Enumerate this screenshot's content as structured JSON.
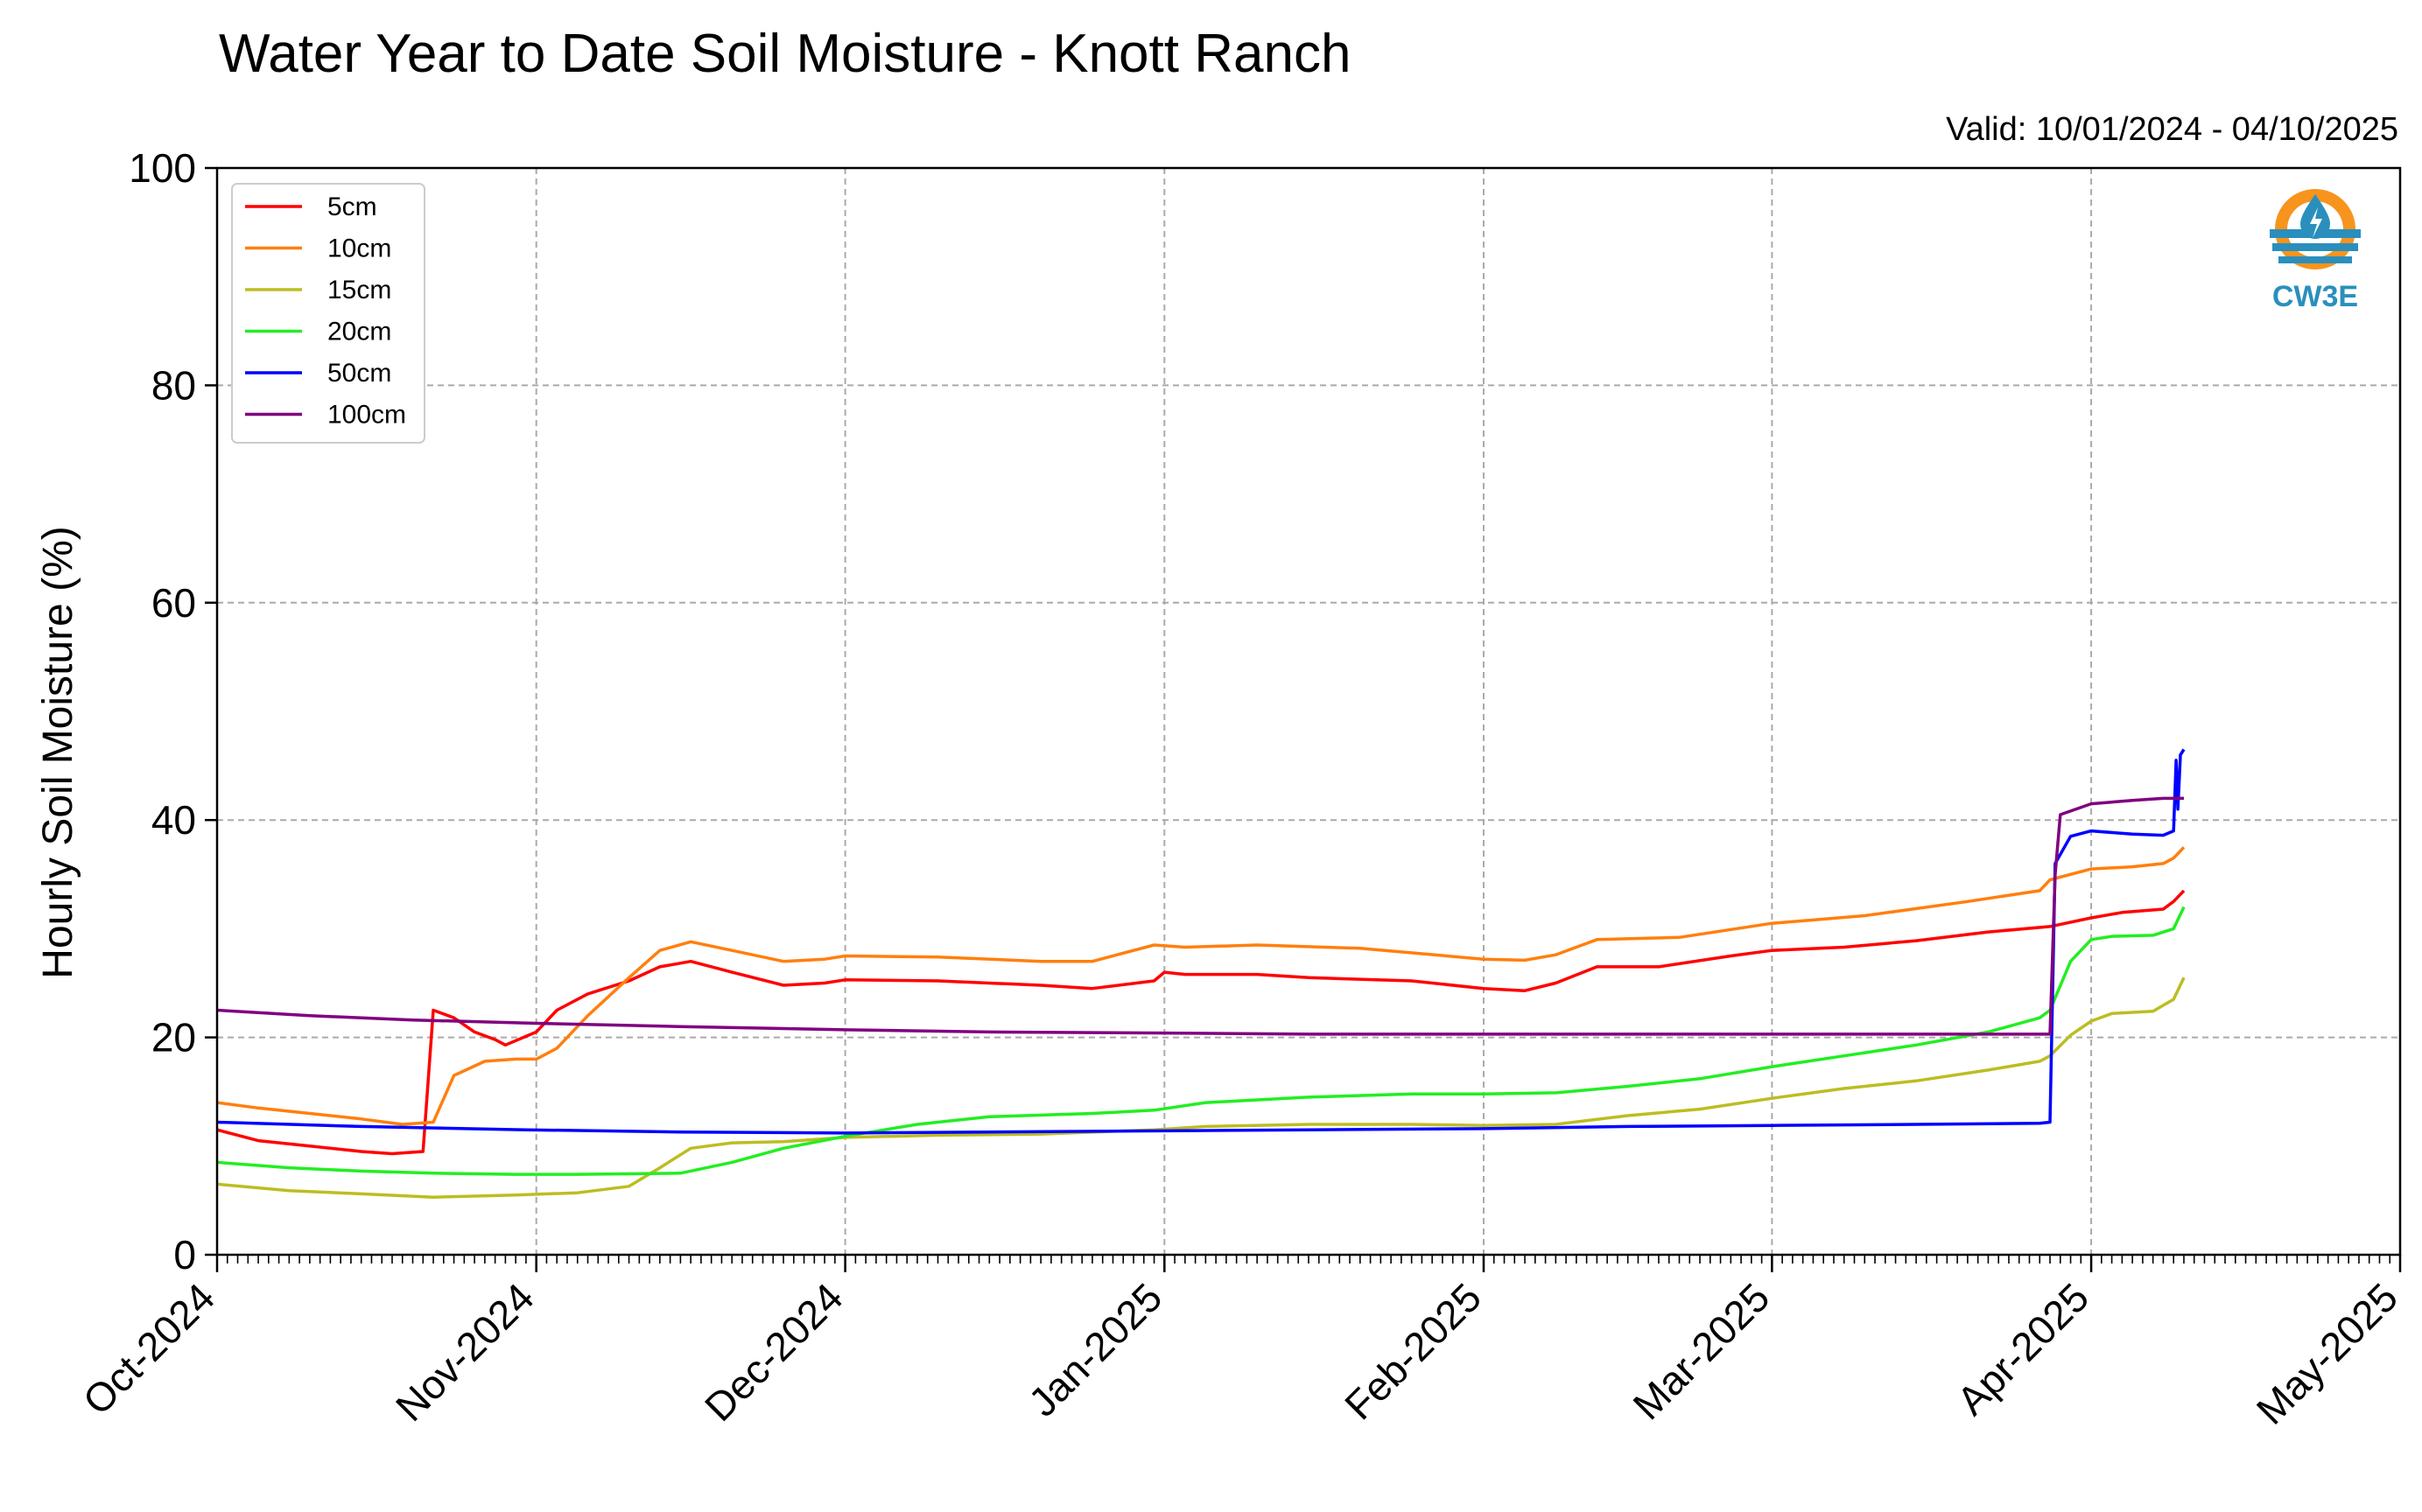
{
  "chart_data": {
    "type": "line",
    "title": "Water Year to Date Soil Moisture - Knott Ranch",
    "subtitle": "Valid: 10/01/2024 - 04/10/2025",
    "xlabel": "",
    "ylabel": "Hourly Soil Moisture (%)",
    "xlim": [
      "2024-10-01",
      "2025-05-01"
    ],
    "ylim": [
      0,
      100
    ],
    "yticks": [
      0,
      20,
      40,
      60,
      80,
      100
    ],
    "xticks": [
      {
        "date": "2024-10-01",
        "label": "Oct-2024"
      },
      {
        "date": "2024-11-01",
        "label": "Nov-2024"
      },
      {
        "date": "2024-12-01",
        "label": "Dec-2024"
      },
      {
        "date": "2025-01-01",
        "label": "Jan-2025"
      },
      {
        "date": "2025-02-01",
        "label": "Feb-2025"
      },
      {
        "date": "2025-03-01",
        "label": "Mar-2025"
      },
      {
        "date": "2025-04-01",
        "label": "Apr-2025"
      },
      {
        "date": "2025-05-01",
        "label": "May-2025"
      }
    ],
    "grid": true,
    "legend_position": "top-left",
    "logo": {
      "text": "CW3E",
      "colors": {
        "ring": "#f7941d",
        "waves": "#2a8fbd",
        "text": "#2a8fbd"
      }
    },
    "series": [
      {
        "name": "5cm",
        "color": "#ff0000",
        "points": [
          [
            "2024-10-01",
            11.5
          ],
          [
            "2024-10-05",
            10.5
          ],
          [
            "2024-10-10",
            10.0
          ],
          [
            "2024-10-15",
            9.5
          ],
          [
            "2024-10-18",
            9.3
          ],
          [
            "2024-10-21",
            9.5
          ],
          [
            "2024-10-22",
            22.5
          ],
          [
            "2024-10-24",
            21.8
          ],
          [
            "2024-10-26",
            20.5
          ],
          [
            "2024-10-28",
            19.8
          ],
          [
            "2024-10-29",
            19.3
          ],
          [
            "2024-11-01",
            20.5
          ],
          [
            "2024-11-03",
            22.5
          ],
          [
            "2024-11-06",
            24.0
          ],
          [
            "2024-11-10",
            25.2
          ],
          [
            "2024-11-13",
            26.5
          ],
          [
            "2024-11-16",
            27.0
          ],
          [
            "2024-11-20",
            26.0
          ],
          [
            "2024-11-25",
            24.8
          ],
          [
            "2024-11-29",
            25.0
          ],
          [
            "2024-12-01",
            25.3
          ],
          [
            "2024-12-10",
            25.2
          ],
          [
            "2024-12-20",
            24.8
          ],
          [
            "2024-12-25",
            24.5
          ],
          [
            "2024-12-31",
            25.2
          ],
          [
            "2025-01-01",
            26.0
          ],
          [
            "2025-01-03",
            25.8
          ],
          [
            "2025-01-10",
            25.8
          ],
          [
            "2025-01-15",
            25.5
          ],
          [
            "2025-01-25",
            25.2
          ],
          [
            "2025-02-01",
            24.5
          ],
          [
            "2025-02-05",
            24.3
          ],
          [
            "2025-02-08",
            25.0
          ],
          [
            "2025-02-12",
            26.5
          ],
          [
            "2025-02-18",
            26.5
          ],
          [
            "2025-02-25",
            27.5
          ],
          [
            "2025-03-01",
            28.0
          ],
          [
            "2025-03-08",
            28.3
          ],
          [
            "2025-03-15",
            28.9
          ],
          [
            "2025-03-22",
            29.7
          ],
          [
            "2025-03-28",
            30.2
          ],
          [
            "2025-04-01",
            31.0
          ],
          [
            "2025-04-04",
            31.5
          ],
          [
            "2025-04-08",
            31.8
          ],
          [
            "2025-04-09",
            32.5
          ],
          [
            "2025-04-10",
            33.5
          ]
        ]
      },
      {
        "name": "10cm",
        "color": "#ff7f0e",
        "points": [
          [
            "2024-10-01",
            14.0
          ],
          [
            "2024-10-05",
            13.5
          ],
          [
            "2024-10-10",
            13.0
          ],
          [
            "2024-10-15",
            12.5
          ],
          [
            "2024-10-19",
            12.0
          ],
          [
            "2024-10-22",
            12.2
          ],
          [
            "2024-10-24",
            16.5
          ],
          [
            "2024-10-27",
            17.8
          ],
          [
            "2024-10-30",
            18.0
          ],
          [
            "2024-11-01",
            18.0
          ],
          [
            "2024-11-03",
            19.0
          ],
          [
            "2024-11-06",
            22.0
          ],
          [
            "2024-11-10",
            25.5
          ],
          [
            "2024-11-13",
            28.0
          ],
          [
            "2024-11-16",
            28.8
          ],
          [
            "2024-11-20",
            28.0
          ],
          [
            "2024-11-25",
            27.0
          ],
          [
            "2024-11-29",
            27.2
          ],
          [
            "2024-12-01",
            27.5
          ],
          [
            "2024-12-10",
            27.4
          ],
          [
            "2024-12-20",
            27.0
          ],
          [
            "2024-12-25",
            27.0
          ],
          [
            "2024-12-31",
            28.5
          ],
          [
            "2025-01-03",
            28.3
          ],
          [
            "2025-01-10",
            28.5
          ],
          [
            "2025-01-20",
            28.2
          ],
          [
            "2025-02-01",
            27.2
          ],
          [
            "2025-02-05",
            27.1
          ],
          [
            "2025-02-08",
            27.6
          ],
          [
            "2025-02-12",
            29.0
          ],
          [
            "2025-02-20",
            29.2
          ],
          [
            "2025-03-01",
            30.5
          ],
          [
            "2025-03-10",
            31.2
          ],
          [
            "2025-03-20",
            32.5
          ],
          [
            "2025-03-27",
            33.5
          ],
          [
            "2025-03-28",
            34.5
          ],
          [
            "2025-04-01",
            35.5
          ],
          [
            "2025-04-05",
            35.7
          ],
          [
            "2025-04-08",
            36.0
          ],
          [
            "2025-04-09",
            36.5
          ],
          [
            "2025-04-10",
            37.5
          ]
        ]
      },
      {
        "name": "15cm",
        "color": "#bcbd22",
        "points": [
          [
            "2024-10-01",
            6.5
          ],
          [
            "2024-10-08",
            5.9
          ],
          [
            "2024-10-15",
            5.6
          ],
          [
            "2024-10-22",
            5.3
          ],
          [
            "2024-10-30",
            5.5
          ],
          [
            "2024-11-05",
            5.7
          ],
          [
            "2024-11-10",
            6.3
          ],
          [
            "2024-11-13",
            8.0
          ],
          [
            "2024-11-16",
            9.8
          ],
          [
            "2024-11-20",
            10.3
          ],
          [
            "2024-11-25",
            10.4
          ],
          [
            "2024-12-01",
            10.8
          ],
          [
            "2024-12-10",
            11.0
          ],
          [
            "2024-12-20",
            11.1
          ],
          [
            "2024-12-31",
            11.5
          ],
          [
            "2025-01-05",
            11.8
          ],
          [
            "2025-01-15",
            12.0
          ],
          [
            "2025-01-25",
            12.0
          ],
          [
            "2025-02-01",
            11.9
          ],
          [
            "2025-02-08",
            12.0
          ],
          [
            "2025-02-15",
            12.8
          ],
          [
            "2025-02-22",
            13.4
          ],
          [
            "2025-03-01",
            14.4
          ],
          [
            "2025-03-08",
            15.3
          ],
          [
            "2025-03-15",
            16.0
          ],
          [
            "2025-03-22",
            17.0
          ],
          [
            "2025-03-27",
            17.8
          ],
          [
            "2025-03-28",
            18.3
          ],
          [
            "2025-03-30",
            20.2
          ],
          [
            "2025-04-01",
            21.5
          ],
          [
            "2025-04-03",
            22.2
          ],
          [
            "2025-04-07",
            22.4
          ],
          [
            "2025-04-09",
            23.5
          ],
          [
            "2025-04-10",
            25.5
          ]
        ]
      },
      {
        "name": "20cm",
        "color": "#22ee22",
        "points": [
          [
            "2024-10-01",
            8.5
          ],
          [
            "2024-10-08",
            8.0
          ],
          [
            "2024-10-15",
            7.7
          ],
          [
            "2024-10-22",
            7.5
          ],
          [
            "2024-10-30",
            7.4
          ],
          [
            "2024-11-05",
            7.4
          ],
          [
            "2024-11-15",
            7.5
          ],
          [
            "2024-11-20",
            8.5
          ],
          [
            "2024-11-25",
            9.8
          ],
          [
            "2024-12-01",
            10.9
          ],
          [
            "2024-12-08",
            12.0
          ],
          [
            "2024-12-15",
            12.7
          ],
          [
            "2024-12-25",
            13.0
          ],
          [
            "2024-12-31",
            13.3
          ],
          [
            "2025-01-05",
            14.0
          ],
          [
            "2025-01-15",
            14.5
          ],
          [
            "2025-01-25",
            14.8
          ],
          [
            "2025-02-01",
            14.8
          ],
          [
            "2025-02-08",
            14.9
          ],
          [
            "2025-02-15",
            15.5
          ],
          [
            "2025-02-22",
            16.2
          ],
          [
            "2025-03-01",
            17.3
          ],
          [
            "2025-03-08",
            18.3
          ],
          [
            "2025-03-15",
            19.3
          ],
          [
            "2025-03-22",
            20.5
          ],
          [
            "2025-03-27",
            21.8
          ],
          [
            "2025-03-28",
            22.5
          ],
          [
            "2025-03-30",
            27.0
          ],
          [
            "2025-04-01",
            29.0
          ],
          [
            "2025-04-03",
            29.3
          ],
          [
            "2025-04-07",
            29.4
          ],
          [
            "2025-04-09",
            30.0
          ],
          [
            "2025-04-10",
            32.0
          ]
        ]
      },
      {
        "name": "50cm",
        "color": "#0000ff",
        "points": [
          [
            "2024-10-01",
            12.2
          ],
          [
            "2024-10-15",
            11.8
          ],
          [
            "2024-10-31",
            11.5
          ],
          [
            "2024-11-15",
            11.3
          ],
          [
            "2024-12-01",
            11.2
          ],
          [
            "2024-12-15",
            11.3
          ],
          [
            "2025-01-01",
            11.4
          ],
          [
            "2025-01-15",
            11.5
          ],
          [
            "2025-02-01",
            11.6
          ],
          [
            "2025-02-15",
            11.8
          ],
          [
            "2025-03-01",
            11.9
          ],
          [
            "2025-03-15",
            12.0
          ],
          [
            "2025-03-27",
            12.1
          ],
          [
            "2025-03-28",
            12.2
          ],
          [
            "2025-03-28 12:00",
            36.0
          ],
          [
            "2025-03-30",
            38.5
          ],
          [
            "2025-04-01",
            39.0
          ],
          [
            "2025-04-05",
            38.7
          ],
          [
            "2025-04-08",
            38.6
          ],
          [
            "2025-04-09",
            39.0
          ],
          [
            "2025-04-09 06:00",
            45.5
          ],
          [
            "2025-04-09 10:00",
            41.0
          ],
          [
            "2025-04-09 16:00",
            46.0
          ],
          [
            "2025-04-10",
            46.5
          ]
        ]
      },
      {
        "name": "100cm",
        "color": "#800080",
        "points": [
          [
            "2024-10-01",
            22.5
          ],
          [
            "2024-10-10",
            22.0
          ],
          [
            "2024-10-20",
            21.6
          ],
          [
            "2024-11-01",
            21.3
          ],
          [
            "2024-11-15",
            21.0
          ],
          [
            "2024-12-01",
            20.7
          ],
          [
            "2024-12-15",
            20.5
          ],
          [
            "2025-01-01",
            20.4
          ],
          [
            "2025-01-15",
            20.3
          ],
          [
            "2025-02-01",
            20.3
          ],
          [
            "2025-02-15",
            20.3
          ],
          [
            "2025-03-01",
            20.3
          ],
          [
            "2025-03-15",
            20.3
          ],
          [
            "2025-03-28",
            20.3
          ],
          [
            "2025-03-28 12:00",
            35.0
          ],
          [
            "2025-03-29",
            40.5
          ],
          [
            "2025-04-01",
            41.5
          ],
          [
            "2025-04-05",
            41.8
          ],
          [
            "2025-04-08",
            42.0
          ],
          [
            "2025-04-09",
            42.0
          ],
          [
            "2025-04-10",
            42.0
          ]
        ]
      }
    ]
  }
}
